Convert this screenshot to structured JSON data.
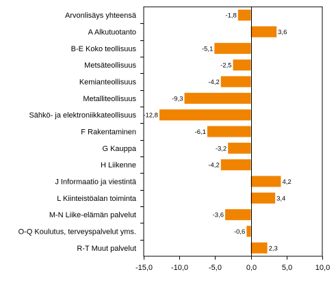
{
  "chart_data": {
    "type": "bar",
    "orientation": "horizontal",
    "title": "",
    "xlabel": "",
    "ylabel": "",
    "categories": [
      "Arvonlisäys yhteensä",
      "A Alkutuotanto",
      "B-E Koko teollisuus",
      "Metsäteollisuus",
      "Kemianteollisuus",
      "Metalliteollisuus",
      "Sähkö- ja elektroniikkateollisuus",
      "F Rakentaminen",
      "G Kauppa",
      "H Liikenne",
      "J Informaatio ja viestintä",
      "L Kiinteistöalan toiminta",
      "M-N Liike-elämän palvelut",
      "O-Q Koulutus, terveyspalvelut yms.",
      "R-T Muut palvelut"
    ],
    "values": [
      -1.8,
      3.6,
      -5.1,
      -2.5,
      -4.2,
      -9.3,
      -12.8,
      -6.1,
      -3.2,
      -4.2,
      4.2,
      3.4,
      -3.6,
      -0.6,
      2.3
    ],
    "value_labels": [
      "-1,8",
      "3,6",
      "-5,1",
      "-2,5",
      "-4,2",
      "-9,3",
      "-12,8",
      "-6,1",
      "-3,2",
      "-4,2",
      "4,2",
      "3,4",
      "-3,6",
      "-0,6",
      "2,3"
    ],
    "xlim": [
      -15,
      10
    ],
    "xticks": [
      -15,
      -10,
      -5,
      0,
      5,
      10
    ],
    "xtick_labels": [
      "-15,0",
      "-10,0",
      "-5,0",
      "0,0",
      "5,0",
      "10,0"
    ],
    "grid": false,
    "legend": "none",
    "colors": {
      "bar": "#f08400",
      "axis": "#000000"
    }
  }
}
